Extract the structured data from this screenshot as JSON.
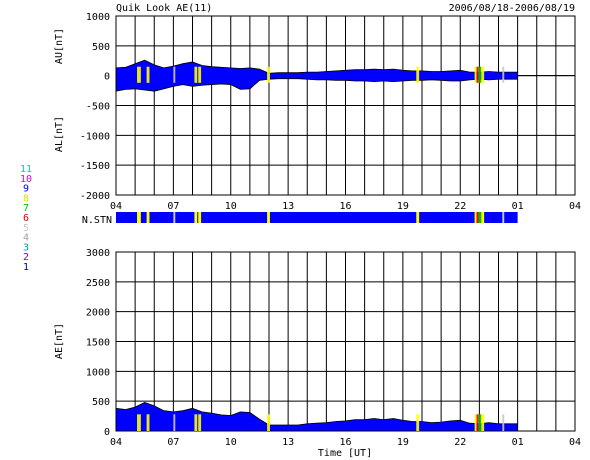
{
  "header": {
    "title": "Quik Look AE(11)",
    "date_range": "2006/08/18-2006/08/19"
  },
  "x_axis": {
    "label": "Time [UT]",
    "tick_labels": [
      "04",
      "07",
      "10",
      "13",
      "16",
      "19",
      "22",
      "01",
      "04"
    ]
  },
  "station_bar": {
    "label": "N.STN"
  },
  "station_legend": {
    "entries": [
      {
        "label": "11",
        "color": "#00c8c8"
      },
      {
        "label": "10",
        "color": "#e000e0"
      },
      {
        "label": "9",
        "color": "#0000e0"
      },
      {
        "label": "8",
        "color": "#e0e000"
      },
      {
        "label": "7",
        "color": "#00c000"
      },
      {
        "label": "6",
        "color": "#e00000"
      },
      {
        "label": "5",
        "color": "#c8c8c8"
      },
      {
        "label": "4",
        "color": "#a0a0a0"
      },
      {
        "label": "3",
        "color": "#00a0a0"
      },
      {
        "label": "2",
        "color": "#a000a0"
      },
      {
        "label": "1",
        "color": "#0000a0"
      }
    ]
  },
  "chart_data": [
    {
      "type": "area",
      "ylabel_upper": "AU[nT]",
      "ylabel_lower": "AL[nT]",
      "ylim": [
        -2000,
        1000
      ],
      "yticks": [
        1000,
        500,
        0,
        -500,
        -1000,
        -1500,
        -2000
      ],
      "x_hours": [
        0,
        0.5,
        1,
        1.5,
        2,
        2.5,
        3,
        3.5,
        4,
        4.5,
        5,
        5.5,
        6,
        6.5,
        7,
        7.5,
        8,
        8.5,
        9,
        9.5,
        10,
        10.5,
        11,
        11.5,
        12,
        12.5,
        13,
        13.5,
        14,
        14.5,
        15,
        15.5,
        16,
        16.5,
        17,
        17.5,
        18,
        18.5,
        19,
        19.5,
        20,
        20.5,
        21
      ],
      "series": [
        {
          "name": "AU",
          "color": "#0000ff",
          "values": [
            130,
            140,
            200,
            260,
            180,
            130,
            160,
            200,
            230,
            170,
            150,
            140,
            130,
            120,
            130,
            110,
            40,
            50,
            50,
            50,
            60,
            60,
            70,
            80,
            90,
            100,
            100,
            110,
            100,
            110,
            90,
            80,
            80,
            70,
            70,
            80,
            90,
            60,
            60,
            70,
            60,
            60,
            60
          ]
        },
        {
          "name": "AL",
          "color": "#0000ff",
          "values": [
            -260,
            -230,
            -220,
            -240,
            -260,
            -220,
            -180,
            -150,
            -180,
            -160,
            -150,
            -140,
            -150,
            -230,
            -220,
            -80,
            -60,
            -50,
            -50,
            -50,
            -60,
            -70,
            -70,
            -80,
            -80,
            -90,
            -90,
            -100,
            -90,
            -100,
            -90,
            -80,
            -80,
            -70,
            -80,
            -90,
            -90,
            -70,
            -60,
            -70,
            -60,
            -60,
            -60
          ]
        }
      ]
    },
    {
      "type": "area",
      "ylabel": "AE[nT]",
      "ylim": [
        0,
        3000
      ],
      "yticks": [
        3000,
        2500,
        2000,
        1500,
        1000,
        500,
        0
      ],
      "x_hours": [
        0,
        0.5,
        1,
        1.5,
        2,
        2.5,
        3,
        3.5,
        4,
        4.5,
        5,
        5.5,
        6,
        6.5,
        7,
        7.5,
        8,
        8.5,
        9,
        9.5,
        10,
        10.5,
        11,
        11.5,
        12,
        12.5,
        13,
        13.5,
        14,
        14.5,
        15,
        15.5,
        16,
        16.5,
        17,
        17.5,
        18,
        18.5,
        19,
        19.5,
        20,
        20.5,
        21
      ],
      "series": [
        {
          "name": "AE",
          "color": "#0000ff",
          "values": [
            380,
            360,
            400,
            480,
            420,
            340,
            320,
            340,
            380,
            320,
            300,
            270,
            260,
            320,
            310,
            200,
            100,
            100,
            100,
            100,
            120,
            130,
            140,
            160,
            170,
            190,
            190,
            210,
            190,
            210,
            180,
            160,
            160,
            140,
            150,
            170,
            180,
            130,
            120,
            140,
            120,
            120,
            120
          ]
        }
      ]
    },
    {
      "type": "heatmap",
      "name": "station_count",
      "base_color": "#0000ff",
      "segments": [
        {
          "from": 0,
          "to": 21,
          "color": "#0000ff"
        },
        {
          "from": 1.1,
          "to": 1.3,
          "color": "#ffff00"
        },
        {
          "from": 1.6,
          "to": 1.75,
          "color": "#ffff00"
        },
        {
          "from": 3.0,
          "to": 3.1,
          "color": "#c8c8c8"
        },
        {
          "from": 4.1,
          "to": 4.25,
          "color": "#ffff00"
        },
        {
          "from": 4.3,
          "to": 4.45,
          "color": "#ffff00"
        },
        {
          "from": 7.9,
          "to": 8.05,
          "color": "#ffff00"
        },
        {
          "from": 15.7,
          "to": 15.85,
          "color": "#ffff00"
        },
        {
          "from": 18.75,
          "to": 18.85,
          "color": "#ffff00"
        },
        {
          "from": 18.85,
          "to": 18.95,
          "color": "#ff0000"
        },
        {
          "from": 18.95,
          "to": 19.1,
          "color": "#00c000"
        },
        {
          "from": 19.1,
          "to": 19.25,
          "color": "#ffff00"
        },
        {
          "from": 20.2,
          "to": 20.3,
          "color": "#c8c8c8"
        }
      ]
    }
  ]
}
